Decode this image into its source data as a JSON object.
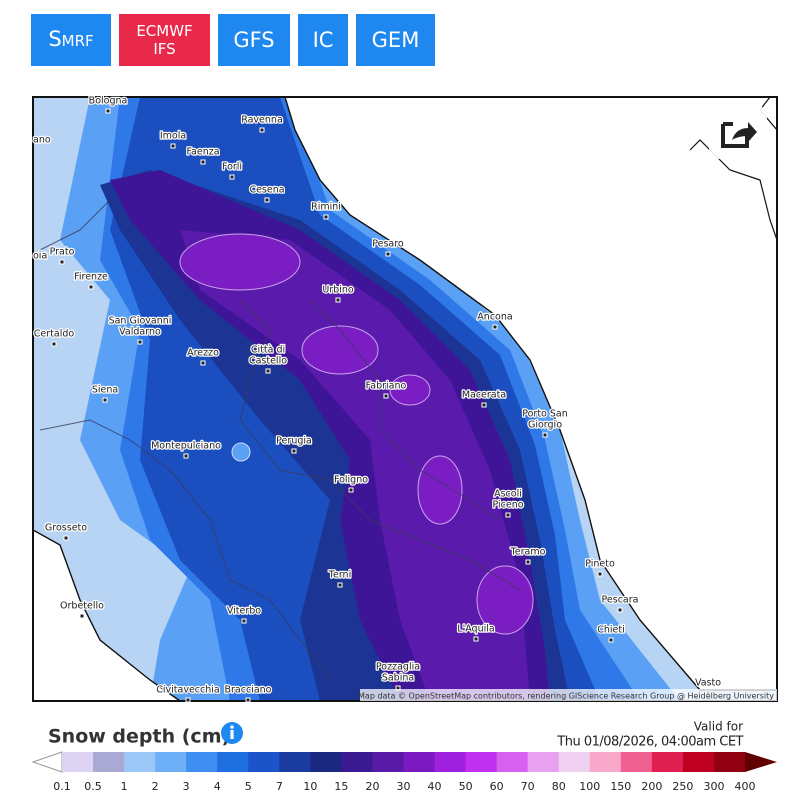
{
  "header": {
    "buttons": [
      {
        "label": "S",
        "sub": "MRF"
      },
      {
        "lines": [
          "ECMWF",
          "IFS"
        ]
      },
      {
        "label": "GFS"
      },
      {
        "label": "IC"
      },
      {
        "label": "GEM"
      }
    ]
  },
  "map": {
    "cities": [
      {
        "lines": [
          "Bologna"
        ]
      },
      {
        "lines": [
          "Imola"
        ]
      },
      {
        "lines": [
          "Ravenna"
        ]
      },
      {
        "lines": [
          "ano"
        ]
      },
      {
        "lines": [
          "Faenza"
        ]
      },
      {
        "lines": [
          "Forlì"
        ]
      },
      {
        "lines": [
          "Cesena"
        ]
      },
      {
        "lines": [
          "Rimini"
        ]
      },
      {
        "lines": [
          "Prato"
        ]
      },
      {
        "lines": [
          "oia"
        ]
      },
      {
        "lines": [
          "Pesaro"
        ]
      },
      {
        "lines": [
          "Firenze"
        ]
      },
      {
        "lines": [
          "Urbino"
        ]
      },
      {
        "lines": [
          "Ancona"
        ]
      },
      {
        "lines": [
          "San Giovanni",
          "Valdarno"
        ]
      },
      {
        "lines": [
          "Certaldo"
        ]
      },
      {
        "lines": [
          "Città di",
          "Castello"
        ]
      },
      {
        "lines": [
          "Arezzo"
        ]
      },
      {
        "lines": [
          "Fabriano"
        ]
      },
      {
        "lines": [
          "Macerata"
        ]
      },
      {
        "lines": [
          "Siena"
        ]
      },
      {
        "lines": [
          "Porto San",
          "Giorgio"
        ]
      },
      {
        "lines": [
          "Montepulciano"
        ]
      },
      {
        "lines": [
          "Perugia"
        ]
      },
      {
        "lines": [
          "Foligno"
        ]
      },
      {
        "lines": [
          "Ascoli",
          "Piceno"
        ]
      },
      {
        "lines": [
          "Grosseto"
        ]
      },
      {
        "lines": [
          "Teramo"
        ]
      },
      {
        "lines": [
          "Pineto"
        ]
      },
      {
        "lines": [
          "Terni"
        ]
      },
      {
        "lines": [
          "Pescara"
        ]
      },
      {
        "lines": [
          "Orbetello"
        ]
      },
      {
        "lines": [
          "Viterbo"
        ]
      },
      {
        "lines": [
          "L'Aquila"
        ]
      },
      {
        "lines": [
          "Chieti"
        ]
      },
      {
        "lines": [
          "Pozzaglia",
          "Sabina"
        ]
      },
      {
        "lines": [
          "Vasto"
        ]
      },
      {
        "lines": [
          "Civitavecchia"
        ]
      },
      {
        "lines": [
          "Bracciano"
        ]
      }
    ],
    "attribution": "Map data © OpenStreetMap contributors, rendering GIScience Research Group @ Heidelberg University"
  },
  "legend": {
    "title": "Snow depth (cm)",
    "valid_label": "Valid for",
    "valid_time": "Thu 01/08/2026, 04:00am CET",
    "labels": [
      "0.1",
      "0.5",
      "1",
      "2",
      "3",
      "4",
      "5",
      "7",
      "10",
      "15",
      "20",
      "30",
      "40",
      "50",
      "60",
      "70",
      "80",
      "100",
      "150",
      "200",
      "250",
      "300",
      "400"
    ]
  }
}
